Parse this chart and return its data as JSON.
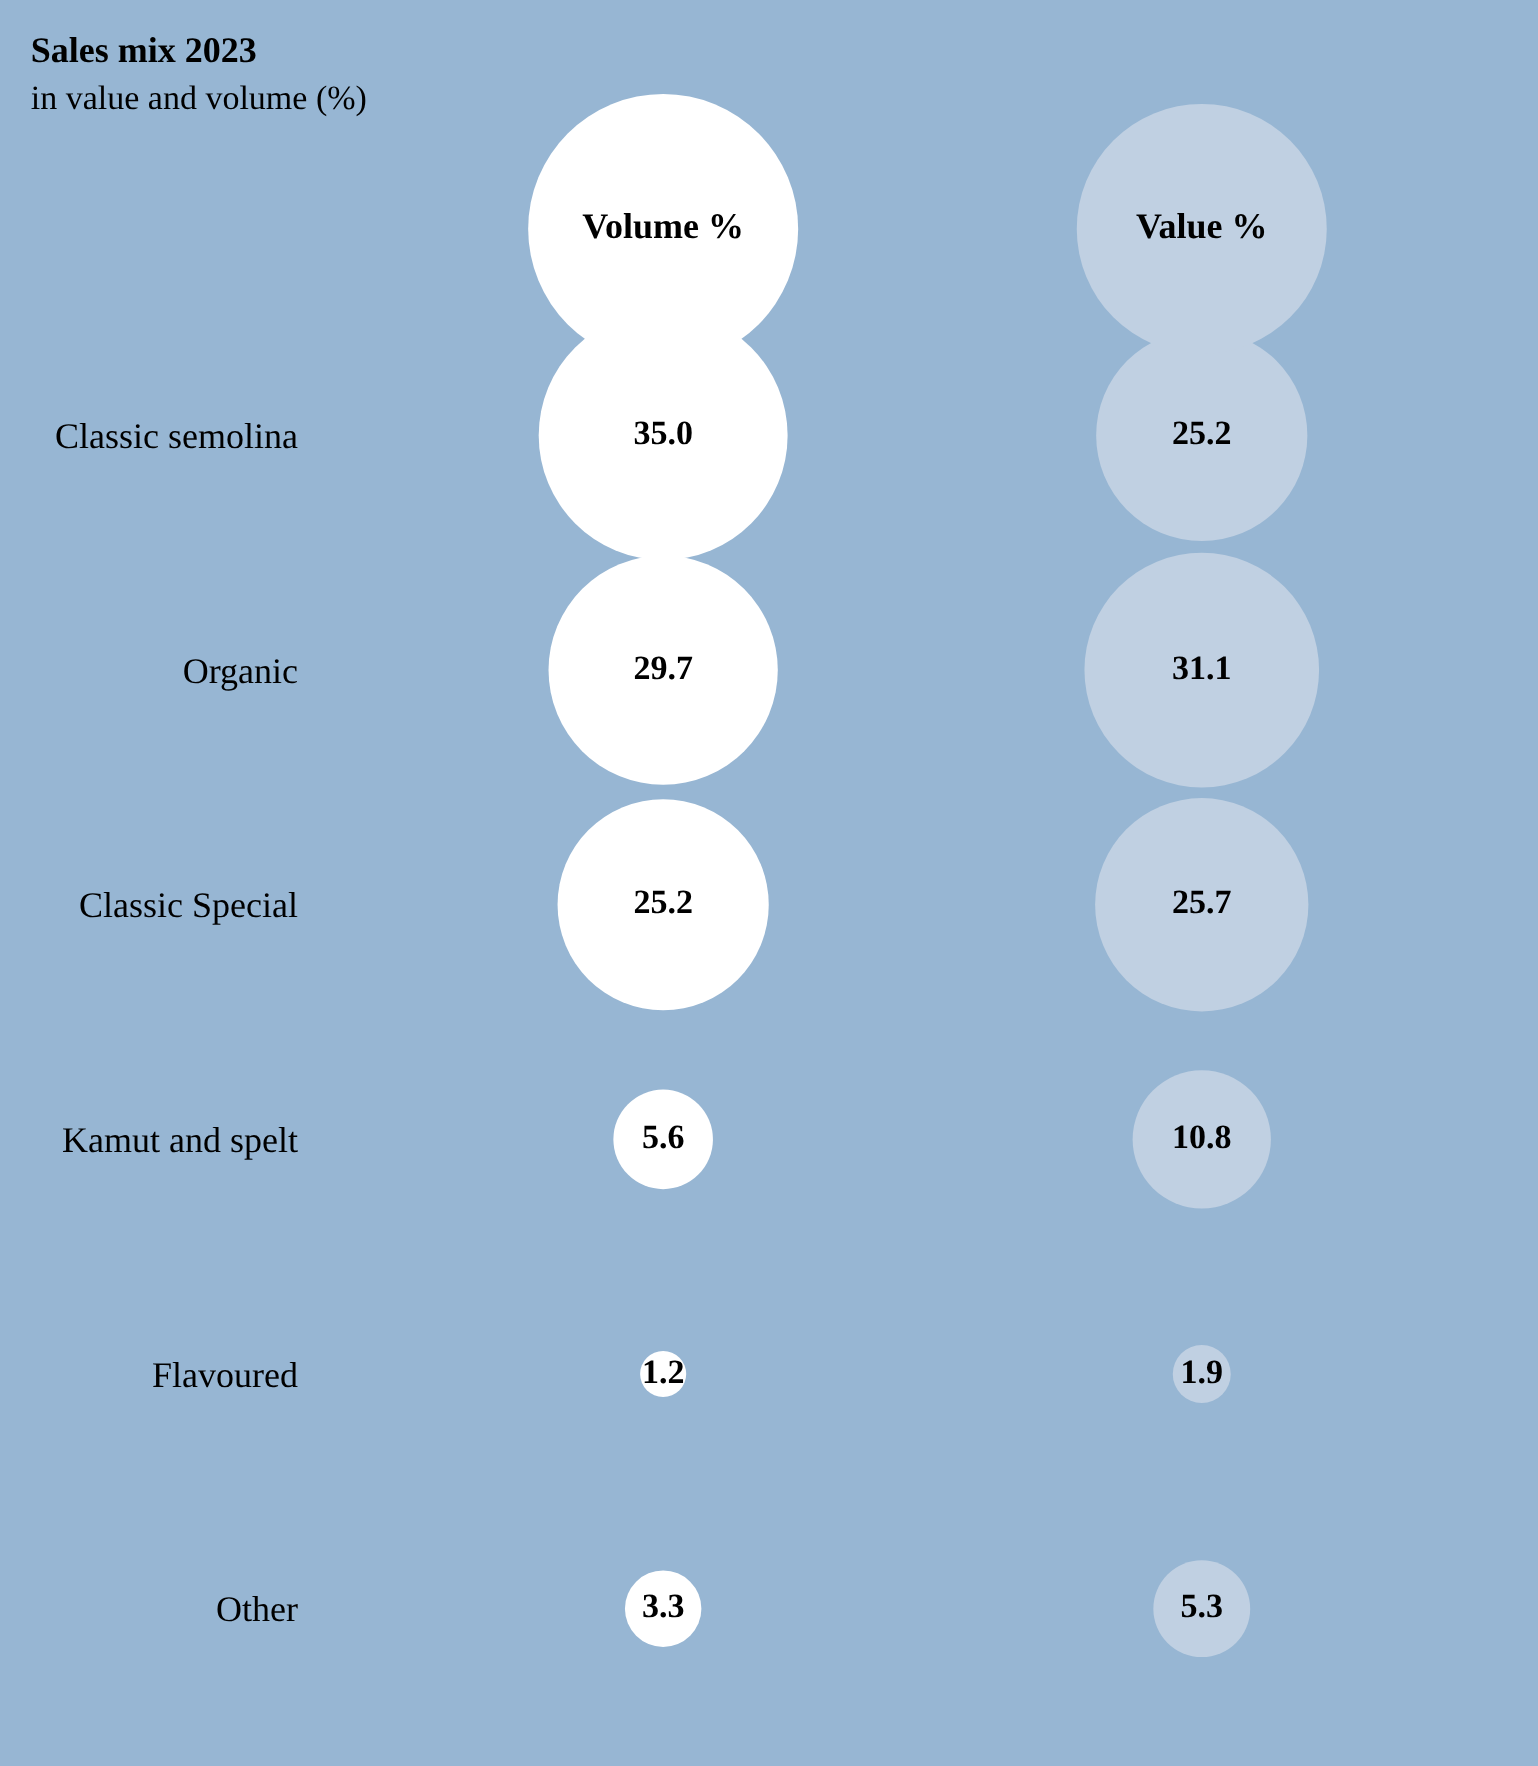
{
  "chart_data": {
    "type": "other",
    "title": "Sales mix 2023",
    "subtitle": "in value and volume (%)",
    "categories": [
      "Classic semolina",
      "Organic",
      "Classic Special",
      "Kamut and spelt",
      "Flavoured",
      "Other"
    ],
    "series": [
      {
        "name": "Volume %",
        "color": "#ffffff",
        "values": [
          35.0,
          29.7,
          25.2,
          5.6,
          1.2,
          3.3
        ],
        "value_labels": [
          "35.0",
          "29.7",
          "25.2",
          "5.6",
          "1.2",
          "3.3"
        ]
      },
      {
        "name": "Value %",
        "color": "#c0d0e2",
        "values": [
          25.2,
          31.1,
          25.7,
          10.8,
          1.9,
          5.3
        ],
        "value_labels": [
          "25.2",
          "31.1",
          "25.7",
          "10.8",
          "1.9",
          "5.3"
        ]
      }
    ],
    "legend": "top"
  }
}
